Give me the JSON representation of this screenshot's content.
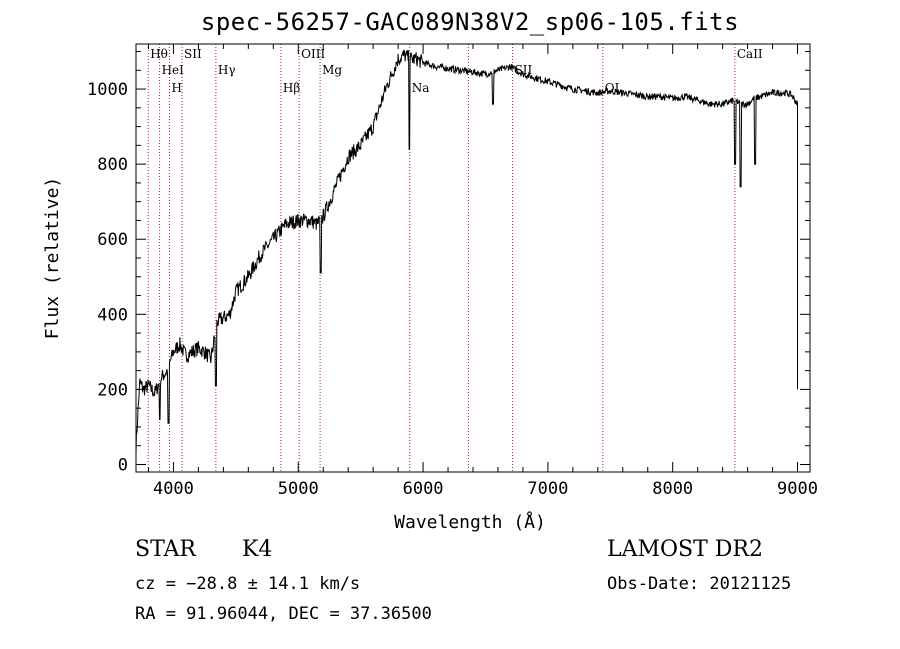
{
  "header": {
    "title": "spec-56257-GAC089N38V2_sp06-105.fits"
  },
  "footer": {
    "object_class": "STAR",
    "subclass": "K4",
    "survey": "LAMOST DR2",
    "cz": "cz = −28.8 ± 14.1 km/s",
    "obs_date": "Obs-Date: 20121125",
    "coords": "RA =  91.96044, DEC =  37.36500"
  },
  "colors": {
    "line_markers": "#b22222",
    "spectrum": "#000000",
    "axes": "#000000"
  },
  "chart_data": {
    "type": "line",
    "title": "spec-56257-GAC089N38V2_sp06-105.fits",
    "xlabel": "Wavelength (Å)",
    "ylabel": "Flux (relative)",
    "xlim": [
      3700,
      9100
    ],
    "ylim": [
      -20,
      1120
    ],
    "x_ticks": [
      4000,
      5000,
      6000,
      7000,
      8000,
      9000
    ],
    "y_ticks": [
      0,
      200,
      400,
      600,
      800,
      1000
    ],
    "x_tick_labels": [
      "4000",
      "5000",
      "6000",
      "7000",
      "8000",
      "9000"
    ],
    "y_tick_labels": [
      "0",
      "200",
      "400",
      "600",
      "800",
      "1000"
    ],
    "series": [
      {
        "x": [
          3700,
          3730,
          3760,
          3800,
          3850,
          3900,
          3950,
          4000,
          4050,
          4100,
          4150,
          4200,
          4250,
          4300,
          4350,
          4400,
          4450,
          4500,
          4600,
          4700,
          4800,
          4900,
          5000,
          5100,
          5150,
          5200,
          5300,
          5400,
          5500,
          5600,
          5700,
          5800,
          5850,
          5900,
          5950,
          6000,
          6100,
          6200,
          6300,
          6400,
          6500,
          6600,
          6700,
          6800,
          6900,
          7000,
          7100,
          7200,
          7300,
          7400,
          7500,
          7600,
          7700,
          7800,
          7900,
          8000,
          8100,
          8200,
          8300,
          8400,
          8500,
          8550,
          8600,
          8650,
          8700,
          8800,
          8900,
          8950,
          9000
        ],
        "y": [
          50,
          220,
          200,
          210,
          190,
          230,
          250,
          300,
          320,
          290,
          300,
          310,
          300,
          280,
          380,
          390,
          400,
          460,
          500,
          560,
          600,
          640,
          650,
          650,
          640,
          660,
          740,
          820,
          850,
          900,
          1000,
          1080,
          1090,
          1080,
          1080,
          1070,
          1060,
          1055,
          1050,
          1045,
          1040,
          1050,
          1060,
          1040,
          1030,
          1020,
          1010,
          1000,
          995,
          990,
          995,
          990,
          985,
          980,
          980,
          975,
          980,
          970,
          960,
          960,
          970,
          960,
          960,
          975,
          980,
          990,
          990,
          985,
          960
        ]
      }
    ],
    "absorption_dips": [
      {
        "x": 3890,
        "y": 120
      },
      {
        "x": 3960,
        "y": 110
      },
      {
        "x": 4340,
        "y": 210
      },
      {
        "x": 5180,
        "y": 510
      },
      {
        "x": 5890,
        "y": 840
      },
      {
        "x": 6560,
        "y": 960
      },
      {
        "x": 8500,
        "y": 800
      },
      {
        "x": 8545,
        "y": 740
      },
      {
        "x": 8660,
        "y": 800
      }
    ],
    "line_markers": [
      {
        "label": "Hθ",
        "x": 3798
      },
      {
        "label": "HeI",
        "x": 3889
      },
      {
        "label": "H",
        "x": 3968
      },
      {
        "label": "SII",
        "x": 4069
      },
      {
        "label": "Hγ",
        "x": 4340
      },
      {
        "label": "Hβ",
        "x": 4861
      },
      {
        "label": "OIII",
        "x": 5007
      },
      {
        "label": "Mg",
        "x": 5175
      },
      {
        "label": "Na",
        "x": 5893
      },
      {
        "label": "",
        "x": 6363
      },
      {
        "label": "SII",
        "x": 6717
      },
      {
        "label": "OI",
        "x": 7440
      },
      {
        "label": "CaII",
        "x": 8498
      }
    ],
    "grid": false,
    "legend": "none"
  }
}
